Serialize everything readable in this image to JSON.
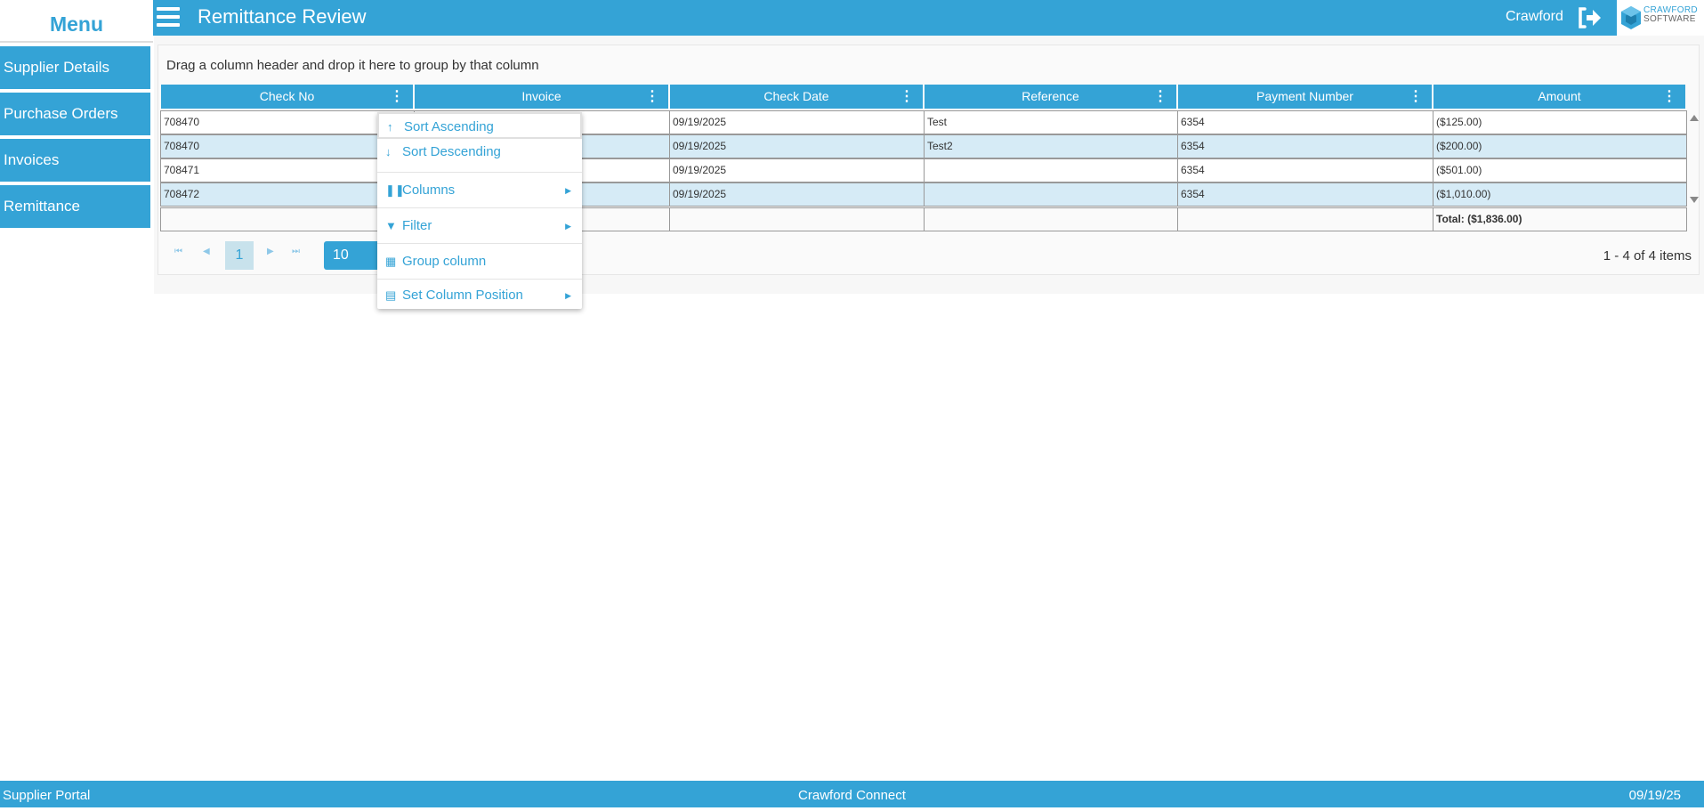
{
  "sidebar": {
    "title": "Menu",
    "items": [
      "Supplier Details",
      "Purchase Orders",
      "Invoices",
      "Remittance"
    ]
  },
  "header": {
    "title": "Remittance Review",
    "user": "Crawford",
    "logo_line1": "CRAWFORD",
    "logo_line2": "SOFTWARE"
  },
  "grid": {
    "group_hint": "Drag a column header and drop it here to group by that column",
    "columns": [
      "Check No",
      "Invoice",
      "Check Date",
      "Reference",
      "Payment Number",
      "Amount"
    ],
    "rows": [
      [
        "708470",
        "",
        "09/19/2025",
        "Test",
        "6354",
        "($125.00)"
      ],
      [
        "708470",
        "",
        "09/19/2025",
        "Test2",
        "6354",
        "($200.00)"
      ],
      [
        "708471",
        "",
        "09/19/2025",
        "",
        "6354",
        "($501.00)"
      ],
      [
        "708472",
        "",
        "09/19/2025",
        "",
        "6354",
        "($1,010.00)"
      ]
    ],
    "total": "Total: ($1,836.00)",
    "pager": {
      "current_page": "1",
      "page_size": "10",
      "info": "1 - 4 of 4 items"
    }
  },
  "column_menu": {
    "items": [
      "Sort Ascending",
      "Sort Descending",
      "Columns",
      "Filter",
      "Group column",
      "Set Column Position"
    ]
  },
  "footer": {
    "left": "Supplier Portal",
    "center": "Crawford Connect",
    "right": "09/19/25"
  },
  "colors": {
    "accent": "#34a3d6",
    "alt_row": "#d6ebf6"
  }
}
